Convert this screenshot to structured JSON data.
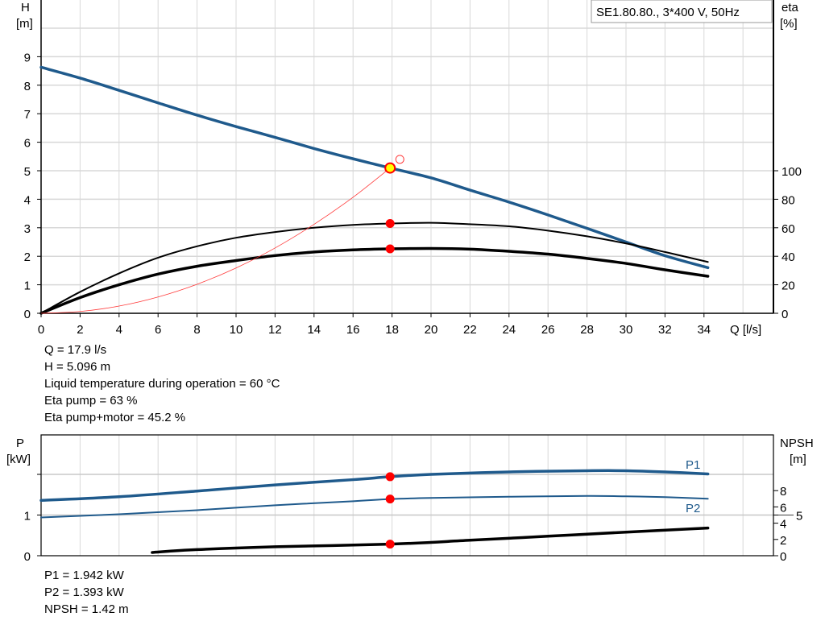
{
  "chart_data": [
    {
      "type": "line",
      "title": "SE1.80.80., 3*400 V, 50Hz",
      "xlabel": "Q [l/s]",
      "ylabel": "H",
      "ylabel_unit": "[m]",
      "y2label": "eta",
      "y2label_unit": "[%]",
      "xlim": [
        0,
        37.6
      ],
      "ylim": [
        0,
        11
      ],
      "y2lim": [
        0,
        220
      ],
      "xticks": [
        "0",
        "2",
        "4",
        "6",
        "8",
        "10",
        "12",
        "14",
        "16",
        "18",
        "20",
        "22",
        "24",
        "26",
        "28",
        "30",
        "32",
        "34"
      ],
      "yticks": [
        "0",
        "1",
        "2",
        "3",
        "4",
        "5",
        "6",
        "7",
        "8",
        "9"
      ],
      "y2ticks": [
        "0",
        "20",
        "40",
        "60",
        "80",
        "100"
      ],
      "grid": true,
      "legend": "top-right",
      "series": [
        {
          "key": "H",
          "axis": "left",
          "color": "#1f5a8c",
          "points": [
            [
              0,
              8.63
            ],
            [
              2,
              8.25
            ],
            [
              4,
              7.82
            ],
            [
              6,
              7.38
            ],
            [
              8,
              6.95
            ],
            [
              10,
              6.55
            ],
            [
              12,
              6.17
            ],
            [
              14,
              5.78
            ],
            [
              16,
              5.42
            ],
            [
              17.9,
              5.096
            ],
            [
              20,
              4.75
            ],
            [
              22,
              4.32
            ],
            [
              24,
              3.9
            ],
            [
              26,
              3.45
            ],
            [
              28,
              2.98
            ],
            [
              30,
              2.5
            ],
            [
              32,
              2.02
            ],
            [
              34.2,
              1.6
            ]
          ]
        },
        {
          "key": "eta_pump",
          "axis": "right",
          "color": "#000000",
          "points": [
            [
              0,
              0
            ],
            [
              2,
              15
            ],
            [
              4,
              28
            ],
            [
              6,
              39
            ],
            [
              8,
              47
            ],
            [
              10,
              53
            ],
            [
              12,
              57
            ],
            [
              14,
              60
            ],
            [
              16,
              62
            ],
            [
              17.9,
              63
            ],
            [
              20,
              63.5
            ],
            [
              22,
              62.5
            ],
            [
              24,
              61
            ],
            [
              26,
              58
            ],
            [
              28,
              54
            ],
            [
              30,
              49
            ],
            [
              32,
              43
            ],
            [
              34.2,
              36
            ]
          ]
        },
        {
          "key": "eta_pump_motor",
          "axis": "right",
          "color": "#000000",
          "points": [
            [
              0,
              0
            ],
            [
              2,
              11
            ],
            [
              4,
              20
            ],
            [
              6,
              27.5
            ],
            [
              8,
              33
            ],
            [
              10,
              37
            ],
            [
              12,
              40.5
            ],
            [
              14,
              43
            ],
            [
              16,
              44.5
            ],
            [
              17.9,
              45.2
            ],
            [
              20,
              45.5
            ],
            [
              22,
              45
            ],
            [
              24,
              43.5
            ],
            [
              26,
              41.5
            ],
            [
              28,
              38.5
            ],
            [
              30,
              35
            ],
            [
              32,
              30.5
            ],
            [
              34.2,
              26
            ]
          ]
        },
        {
          "key": "system_curve",
          "axis": "left",
          "color": "#ff3b3b",
          "points": [
            [
              0,
              0
            ],
            [
              2,
              0.064
            ],
            [
              4,
              0.254
            ],
            [
              6,
              0.573
            ],
            [
              8,
              1.018
            ],
            [
              10,
              1.59
            ],
            [
              12,
              2.29
            ],
            [
              14,
              3.12
            ],
            [
              16,
              4.07
            ],
            [
              17.9,
              5.096
            ]
          ]
        }
      ],
      "markers": [
        {
          "key": "duty_point",
          "x": 17.9,
          "y": 5.096,
          "axis": "left",
          "fill": "#ffff00",
          "stroke": "#ff0000"
        },
        {
          "key": "eta_pump_point",
          "x": 17.9,
          "y": 63,
          "axis": "right",
          "fill": "#ff0000"
        },
        {
          "key": "eta_pump_motor_point",
          "x": 17.9,
          "y": 45.2,
          "axis": "right",
          "fill": "#ff0000"
        },
        {
          "key": "open_circle",
          "x": 18.4,
          "y": 5.4,
          "axis": "left",
          "fill": "none",
          "stroke": "#ff3b3b"
        }
      ]
    },
    {
      "type": "line",
      "ylabel": "P",
      "ylabel_unit": "[kW]",
      "y2label": "NPSH",
      "y2label_unit": "[m]",
      "xlim": [
        0,
        37.6
      ],
      "ylim": [
        0,
        3
      ],
      "y2lim": [
        0,
        15
      ],
      "yticks": [
        "0",
        "1"
      ],
      "y2ticks": [
        "0",
        "2",
        "4",
        "5",
        "6",
        "8"
      ],
      "grid": true,
      "series": [
        {
          "key": "P1",
          "name": "P1",
          "axis": "left",
          "color": "#1f5a8c",
          "points": [
            [
              0,
              1.36
            ],
            [
              4,
              1.45
            ],
            [
              8,
              1.59
            ],
            [
              12,
              1.74
            ],
            [
              16,
              1.87
            ],
            [
              17.9,
              1.942
            ],
            [
              20,
              2.0
            ],
            [
              24,
              2.06
            ],
            [
              28,
              2.09
            ],
            [
              30,
              2.09
            ],
            [
              32,
              2.06
            ],
            [
              34.2,
              2.01
            ]
          ]
        },
        {
          "key": "P2",
          "name": "P2",
          "axis": "left",
          "color": "#1f5a8c",
          "points": [
            [
              0,
              0.94
            ],
            [
              4,
              1.02
            ],
            [
              8,
              1.12
            ],
            [
              12,
              1.24
            ],
            [
              16,
              1.34
            ],
            [
              17.9,
              1.393
            ],
            [
              20,
              1.42
            ],
            [
              24,
              1.45
            ],
            [
              28,
              1.47
            ],
            [
              30,
              1.46
            ],
            [
              32,
              1.44
            ],
            [
              34.2,
              1.4
            ]
          ]
        },
        {
          "key": "NPSH",
          "axis": "right",
          "color": "#000000",
          "points": [
            [
              5.7,
              0.4
            ],
            [
              8,
              0.75
            ],
            [
              12,
              1.1
            ],
            [
              17.9,
              1.42
            ],
            [
              22,
              1.9
            ],
            [
              26,
              2.4
            ],
            [
              30,
              2.9
            ],
            [
              34.2,
              3.4
            ]
          ]
        }
      ],
      "markers": [
        {
          "key": "p1_point",
          "x": 17.9,
          "y": 1.942,
          "axis": "left",
          "fill": "#ff0000"
        },
        {
          "key": "p2_point",
          "x": 17.9,
          "y": 1.393,
          "axis": "left",
          "fill": "#ff0000"
        },
        {
          "key": "npsh_point",
          "x": 17.9,
          "y": 1.42,
          "axis": "right",
          "fill": "#ff0000"
        }
      ]
    }
  ],
  "info_top": [
    "Q = 17.9 l/s",
    "H = 5.096 m",
    "Liquid temperature during operation = 60 °C",
    "Eta pump = 63 %",
    "Eta pump+motor = 45.2 %"
  ],
  "info_bottom": [
    "P1 = 1.942 kW",
    "P2 = 1.393 kW",
    "NPSH = 1.42 m"
  ]
}
